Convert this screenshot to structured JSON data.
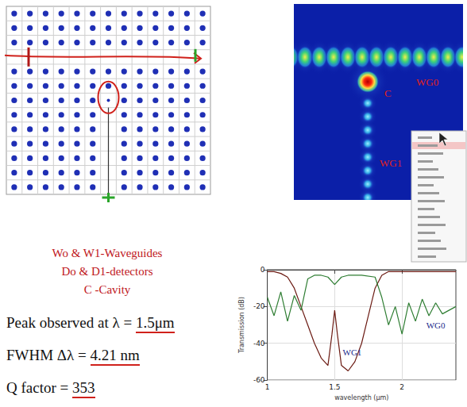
{
  "legend_lines": [
    "Wo & W1-Waveguides",
    "Do & D1-detectors",
    "C -Cavity"
  ],
  "results": [
    {
      "label": "Peak observed at λ = ",
      "value": "1.5μm"
    },
    {
      "label": "FWHM Δλ = ",
      "value": "4.21 nm"
    },
    {
      "label": "Q factor = ",
      "value": "353"
    }
  ],
  "field_map_labels": [
    "WG0",
    "C",
    "WG1"
  ],
  "chart_data": {
    "type": "line",
    "x_label": "wavelength (µm)",
    "y_label": "Transmission (dB)",
    "xlim": [
      1,
      2.4
    ],
    "xticks": [
      1,
      1.5,
      2
    ],
    "ylim": [
      -60,
      0
    ],
    "yticks": [
      -60,
      -40,
      -20,
      0
    ],
    "grid": true,
    "series": [
      {
        "name": "WG1",
        "color": "#6b1a12",
        "label_color": "#1a2a8c",
        "label_position": {
          "x": 1.63,
          "y": -45
        },
        "x": [
          1.0,
          1.05,
          1.1,
          1.15,
          1.2,
          1.25,
          1.3,
          1.35,
          1.4,
          1.45,
          1.48,
          1.5,
          1.52,
          1.55,
          1.6,
          1.65,
          1.7,
          1.75,
          1.8,
          1.85,
          1.9,
          1.95,
          2.0,
          2.05,
          2.1,
          2.15,
          2.2,
          2.25,
          2.3,
          2.35,
          2.4
        ],
        "values": [
          -1,
          -1,
          -2,
          -4,
          -10,
          -20,
          -30,
          -40,
          -48,
          -52,
          -35,
          -22,
          -35,
          -52,
          -55,
          -50,
          -40,
          -25,
          -10,
          -3,
          -1,
          -1,
          -1,
          -1,
          -1,
          -1,
          -1,
          -1,
          -1,
          -1,
          -1
        ]
      },
      {
        "name": "WG0",
        "color": "#2e7d32",
        "label_color": "#1a2a8c",
        "label_position": {
          "x": 2.25,
          "y": -30
        },
        "x": [
          1.0,
          1.05,
          1.1,
          1.15,
          1.2,
          1.25,
          1.3,
          1.35,
          1.4,
          1.45,
          1.5,
          1.55,
          1.6,
          1.7,
          1.8,
          1.85,
          1.9,
          1.95,
          2.0,
          2.05,
          2.1,
          2.15,
          2.2,
          2.25,
          2.3,
          2.4
        ],
        "values": [
          -15,
          -25,
          -12,
          -28,
          -14,
          -22,
          -5,
          -3,
          -3,
          -4,
          -8,
          -4,
          -3,
          -3,
          -4,
          -15,
          -30,
          -20,
          -35,
          -18,
          -28,
          -16,
          -25,
          -18,
          -24,
          -20
        ]
      }
    ]
  }
}
